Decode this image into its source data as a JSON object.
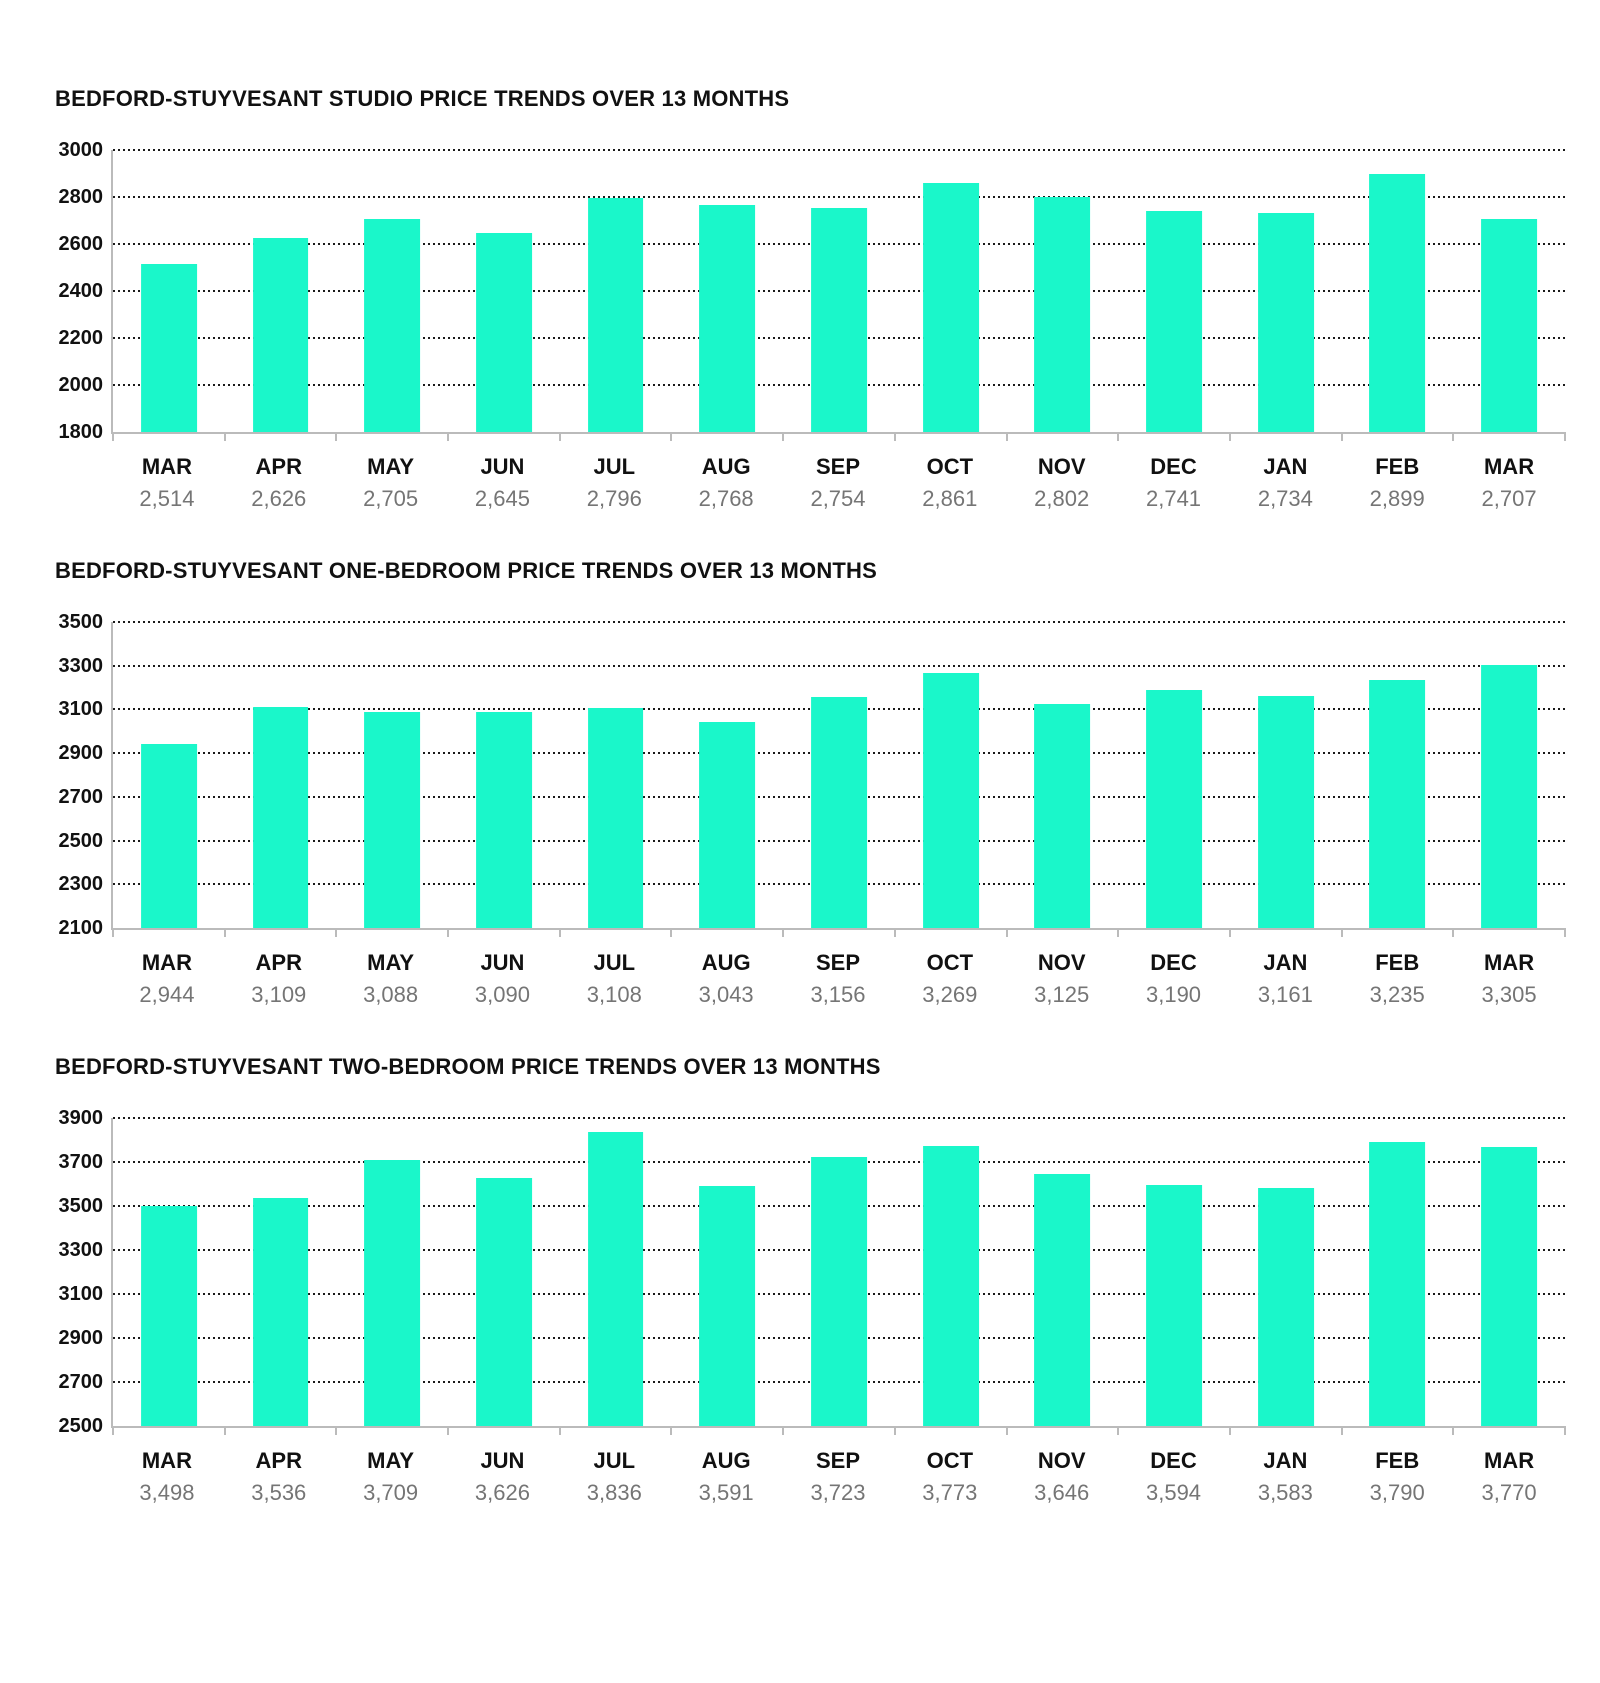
{
  "page": {
    "background": "#ffffff"
  },
  "colors": {
    "bar": "#1AF7CA",
    "axis": "#bbbbbb",
    "gridline": "#1a1a1a",
    "title_text": "#111111",
    "month_label": "#111111",
    "value_label": "#757575"
  },
  "chart_data": [
    {
      "type": "bar",
      "title": "BEDFORD-STUYVESANT STUDIO PRICE TRENDS OVER 13 MONTHS",
      "categories": [
        "MAR",
        "APR",
        "MAY",
        "JUN",
        "JUL",
        "AUG",
        "SEP",
        "OCT",
        "NOV",
        "DEC",
        "JAN",
        "FEB",
        "MAR"
      ],
      "values": [
        2514,
        2626,
        2705,
        2645,
        2796,
        2768,
        2754,
        2861,
        2802,
        2741,
        2734,
        2899,
        2707
      ],
      "value_labels": [
        "2,514",
        "2,626",
        "2,705",
        "2,645",
        "2,796",
        "2,768",
        "2,754",
        "2,861",
        "2,802",
        "2,741",
        "2,734",
        "2,899",
        "2,707"
      ],
      "xlabel": "",
      "ylabel": "",
      "ylim": [
        1800,
        3000
      ],
      "ytick_step": 200,
      "grid": "dotted-horizontal",
      "legend": "none"
    },
    {
      "type": "bar",
      "title": "BEDFORD-STUYVESANT ONE-BEDROOM PRICE TRENDS OVER 13 MONTHS",
      "categories": [
        "MAR",
        "APR",
        "MAY",
        "JUN",
        "JUL",
        "AUG",
        "SEP",
        "OCT",
        "NOV",
        "DEC",
        "JAN",
        "FEB",
        "MAR"
      ],
      "values": [
        2944,
        3109,
        3088,
        3090,
        3108,
        3043,
        3156,
        3269,
        3125,
        3190,
        3161,
        3235,
        3305
      ],
      "value_labels": [
        "2,944",
        "3,109",
        "3,088",
        "3,090",
        "3,108",
        "3,043",
        "3,156",
        "3,269",
        "3,125",
        "3,190",
        "3,161",
        "3,235",
        "3,305"
      ],
      "xlabel": "",
      "ylabel": "",
      "ylim": [
        2100,
        3500
      ],
      "ytick_step": 200,
      "grid": "dotted-horizontal",
      "legend": "none"
    },
    {
      "type": "bar",
      "title": "BEDFORD-STUYVESANT TWO-BEDROOM PRICE TRENDS OVER 13 MONTHS",
      "categories": [
        "MAR",
        "APR",
        "MAY",
        "JUN",
        "JUL",
        "AUG",
        "SEP",
        "OCT",
        "NOV",
        "DEC",
        "JAN",
        "FEB",
        "MAR"
      ],
      "values": [
        3498,
        3536,
        3709,
        3626,
        3836,
        3591,
        3723,
        3773,
        3646,
        3594,
        3583,
        3790,
        3770
      ],
      "value_labels": [
        "3,498",
        "3,536",
        "3,709",
        "3,626",
        "3,836",
        "3,591",
        "3,723",
        "3,773",
        "3,646",
        "3,594",
        "3,583",
        "3,790",
        "3,770"
      ],
      "xlabel": "",
      "ylabel": "",
      "ylim": [
        2500,
        3900
      ],
      "ytick_step": 200,
      "grid": "dotted-horizontal",
      "legend": "none"
    }
  ]
}
